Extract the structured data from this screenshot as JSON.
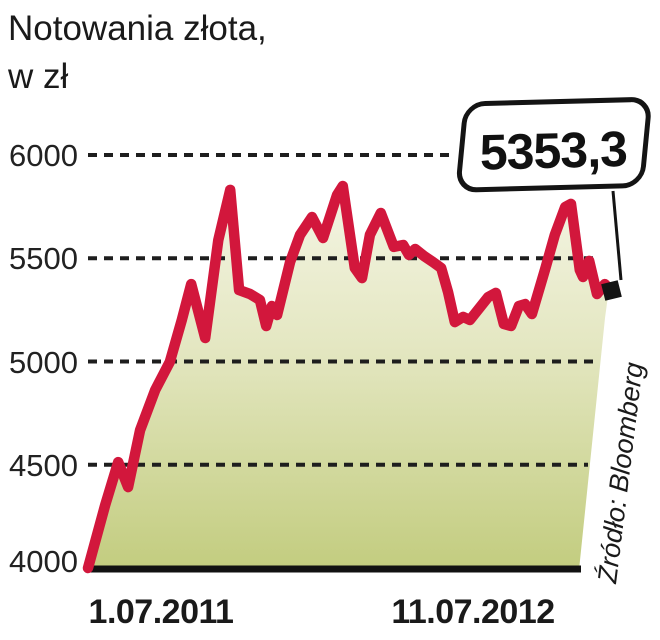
{
  "title": {
    "line1": "Notowania złota,",
    "line2": "w zł"
  },
  "callout": {
    "value": "5353,3"
  },
  "source": {
    "label": "Źródło: Bloomberg"
  },
  "colors": {
    "line": "#d2173c",
    "fill_top": "#f7f7e9",
    "fill_bottom": "#c2cc7e",
    "grid": "#1e1e1e",
    "axis": "#111111",
    "marker": "#141414",
    "text": "#1a1a1a"
  },
  "chart_data": {
    "type": "area",
    "title": "Notowania złota, w zł",
    "xlabel": "",
    "ylabel": "w zł",
    "x_axis_labels": [
      "1.07.2011",
      "11.07.2012"
    ],
    "y_ticks": [
      4000,
      4500,
      5000,
      5500,
      6000
    ],
    "y_tick_labels": [
      "6000",
      "5500",
      "5000",
      "4500",
      "4000"
    ],
    "ylim": [
      4000,
      6000
    ],
    "grid": "dashed-horizontal",
    "legend": "none",
    "last_value": 5353.3,
    "last_value_label": "5353,3",
    "series": [
      {
        "name": "Notowania złota (zł)",
        "points": [
          [
            0.0,
            4000
          ],
          [
            0.033,
            4305
          ],
          [
            0.058,
            4513
          ],
          [
            0.077,
            4392
          ],
          [
            0.1,
            4668
          ],
          [
            0.129,
            4862
          ],
          [
            0.157,
            4998
          ],
          [
            0.18,
            5201
          ],
          [
            0.198,
            5375
          ],
          [
            0.225,
            5114
          ],
          [
            0.25,
            5588
          ],
          [
            0.273,
            5831
          ],
          [
            0.29,
            5346
          ],
          [
            0.311,
            5327
          ],
          [
            0.33,
            5298
          ],
          [
            0.342,
            5172
          ],
          [
            0.353,
            5269
          ],
          [
            0.363,
            5225
          ],
          [
            0.388,
            5482
          ],
          [
            0.407,
            5613
          ],
          [
            0.43,
            5700
          ],
          [
            0.451,
            5598
          ],
          [
            0.478,
            5806
          ],
          [
            0.489,
            5850
          ],
          [
            0.512,
            5453
          ],
          [
            0.526,
            5404
          ],
          [
            0.541,
            5613
          ],
          [
            0.562,
            5719
          ],
          [
            0.587,
            5555
          ],
          [
            0.605,
            5564
          ],
          [
            0.616,
            5516
          ],
          [
            0.628,
            5545
          ],
          [
            0.645,
            5511
          ],
          [
            0.662,
            5482
          ],
          [
            0.678,
            5453
          ],
          [
            0.691,
            5337
          ],
          [
            0.704,
            5191
          ],
          [
            0.72,
            5216
          ],
          [
            0.733,
            5201
          ],
          [
            0.768,
            5312
          ],
          [
            0.783,
            5332
          ],
          [
            0.798,
            5182
          ],
          [
            0.812,
            5172
          ],
          [
            0.827,
            5269
          ],
          [
            0.839,
            5278
          ],
          [
            0.852,
            5230
          ],
          [
            0.877,
            5443
          ],
          [
            0.896,
            5613
          ],
          [
            0.916,
            5748
          ],
          [
            0.927,
            5763
          ],
          [
            0.944,
            5443
          ],
          [
            0.95,
            5409
          ],
          [
            0.962,
            5487
          ],
          [
            0.977,
            5327
          ],
          [
            0.992,
            5375
          ],
          [
            1.0,
            5353.3
          ]
        ]
      }
    ]
  }
}
